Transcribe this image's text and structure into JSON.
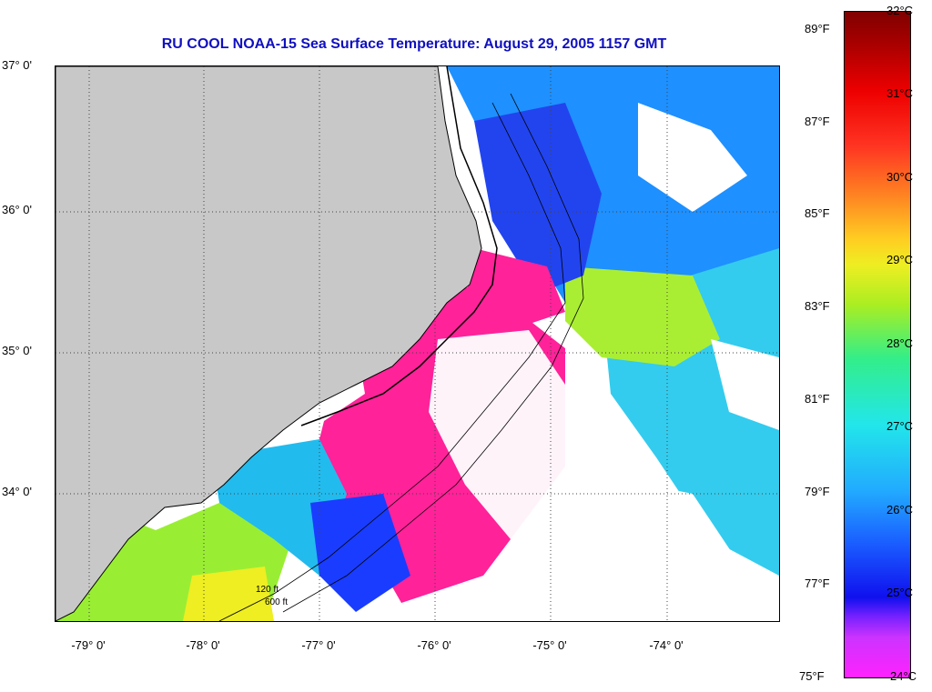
{
  "title": "RU COOL  NOAA-15  Sea Surface Temperature:  August 29, 2005 1157 GMT",
  "lat_labels": [
    "37° 0'",
    "36° 0'",
    "35° 0'",
    "34° 0'"
  ],
  "lon_labels": [
    "-79° 0'",
    "-78° 0'",
    "-77° 0'",
    "-76° 0'",
    "-75° 0'",
    "-74° 0'"
  ],
  "colorbar": {
    "celsius_labels": [
      "32°C",
      "31°C",
      "30°C",
      "29°C",
      "28°C",
      "27°C",
      "26°C",
      "25°C",
      "24°C"
    ],
    "fahrenheit_labels": [
      "89°F",
      "87°F",
      "85°F",
      "83°F",
      "81°F",
      "79°F",
      "77°F",
      "75°F"
    ]
  },
  "colors": {
    "land": "#c8c8c8",
    "cloud": "#ffffff",
    "warm_gulfstream": "#1e90ff",
    "cold_magenta": "#ff2299",
    "title_blue": "#1010c0"
  },
  "contour_labels": [
    "120 ft",
    "600 ft"
  ]
}
